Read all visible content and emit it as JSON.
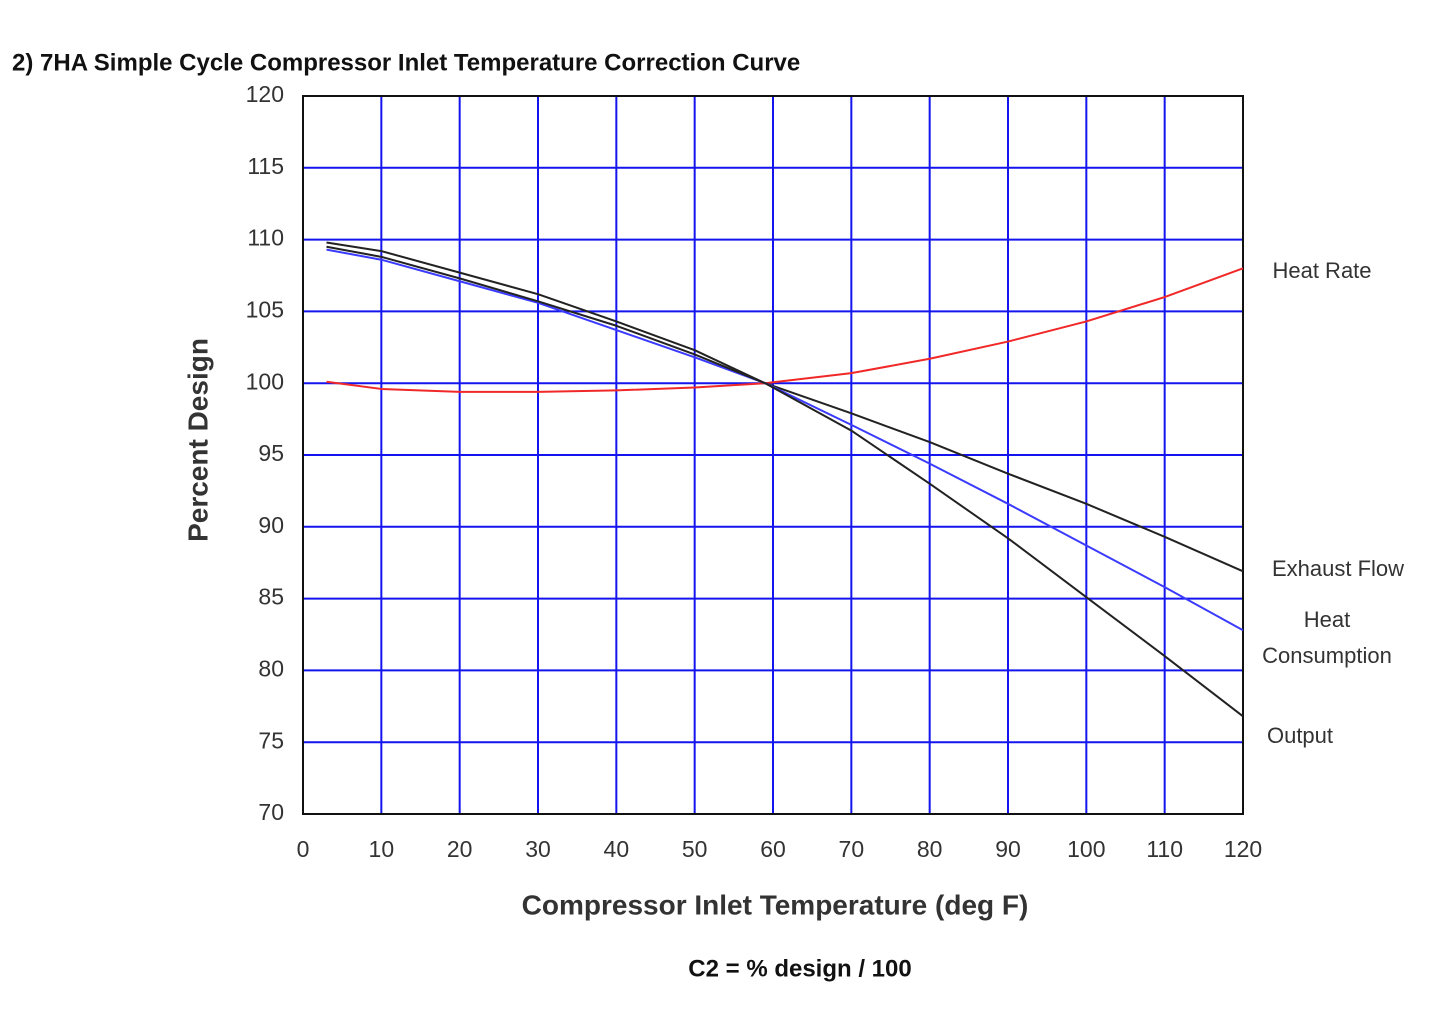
{
  "chart_data": {
    "type": "line",
    "title": "2)  7HA Simple Cycle Compressor Inlet Temperature Correction Curve",
    "x_label": "Compressor Inlet Temperature (deg F)",
    "y_label": "Percent Design",
    "footnote": "C2 = % design / 100",
    "x": [
      3,
      10,
      20,
      30,
      40,
      50,
      59,
      70,
      80,
      90,
      100,
      110,
      120
    ],
    "series": [
      {
        "name": "Heat Rate",
        "color": "#f02828",
        "values": [
          100.1,
          99.6,
          99.4,
          99.4,
          99.5,
          99.7,
          100,
          100.7,
          101.7,
          102.9,
          104.3,
          106,
          108
        ]
      },
      {
        "name": "Exhaust Flow",
        "color": "#222222",
        "values": [
          109.8,
          109.2,
          107.7,
          106.2,
          104.3,
          102.3,
          100,
          97.9,
          95.9,
          93.7,
          91.6,
          89.3,
          86.9
        ]
      },
      {
        "name": "Heat Consumption",
        "color": "#3b3bff",
        "values": [
          109.3,
          108.6,
          107.1,
          105.6,
          103.7,
          101.8,
          100,
          97.1,
          94.4,
          91.6,
          88.7,
          85.8,
          82.8
        ]
      },
      {
        "name": "Output",
        "color": "#222222",
        "values": [
          109.5,
          108.8,
          107.3,
          105.7,
          104.0,
          102.0,
          100,
          96.7,
          93.0,
          89.2,
          85.1,
          81.0,
          76.8
        ]
      }
    ],
    "xlim": [
      0,
      120
    ],
    "ylim": [
      70,
      120
    ],
    "xticks": [
      0,
      10,
      20,
      30,
      40,
      50,
      60,
      70,
      80,
      90,
      100,
      110,
      120
    ],
    "yticks": [
      70,
      75,
      80,
      85,
      90,
      95,
      100,
      105,
      110,
      115,
      120
    ],
    "grid": true,
    "grid_color": "#1414ee"
  }
}
